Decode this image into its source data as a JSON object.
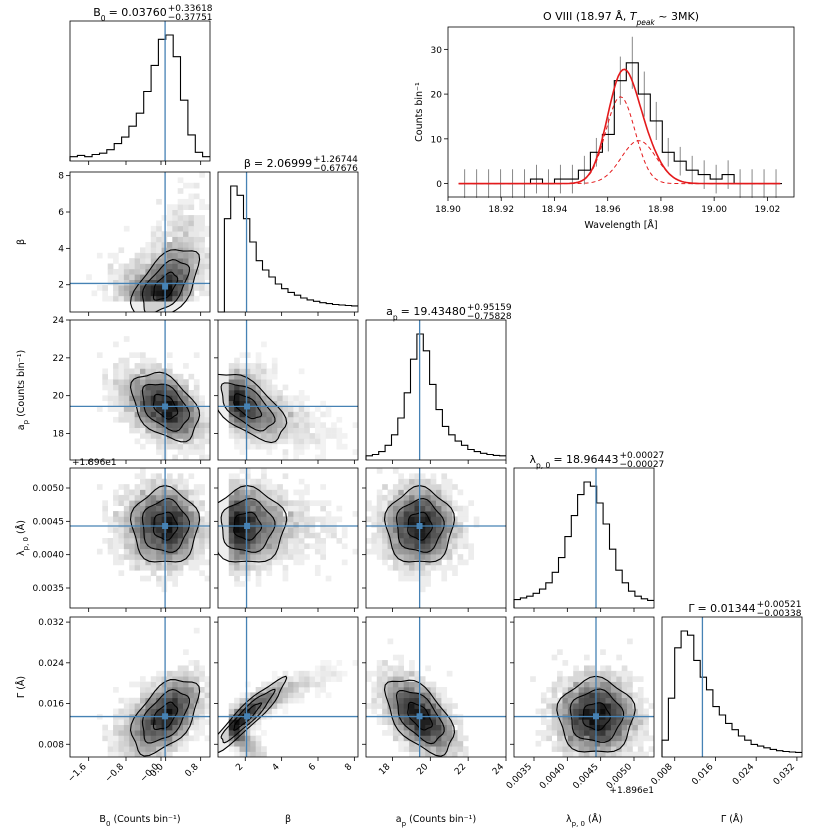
{
  "chart_data": {
    "type": "corner",
    "truth_color": "#4682b4",
    "params": [
      {
        "key": "B0",
        "title_main": "B",
        "title_sub": "0",
        "title_value": "= 0.03760",
        "err_plus": "+0.33618",
        "err_minus": "−0.37751",
        "xlabel_main": "B",
        "xlabel_sub": "0",
        "xlabel_rest": " (Counts bin⁻¹)",
        "ylabel": "",
        "range": [
          -2.0,
          1.0
        ],
        "ticks": [
          "−1.6",
          "−0.8",
          "−0.0",
          "0.0",
          "0.8"
        ],
        "tick_values": [
          -1.6,
          -0.8,
          -0.05,
          0.05,
          0.8
        ],
        "truth": 0.0376,
        "mean": 0.0376,
        "sigma": 0.34,
        "skew": -1.5,
        "hist": [
          1,
          1.3,
          1,
          1.5,
          1.8,
          2.6,
          4,
          5.5,
          8,
          11,
          16,
          22,
          28,
          29,
          24,
          14,
          6,
          2,
          1
        ]
      },
      {
        "key": "beta",
        "title_main": "β",
        "title_value": "= 2.06999",
        "err_plus": "+1.26744",
        "err_minus": "−0.67676",
        "xlabel_main": "β",
        "ylabel": "β",
        "range": [
          0.5,
          8.2
        ],
        "ticks": [
          "2",
          "4",
          "6",
          "8"
        ],
        "tick_values": [
          2,
          4,
          6,
          8
        ],
        "truth": 2.07,
        "mean": 2.3,
        "sigma": 1.0,
        "skew": 0,
        "hist": [
          0,
          20,
          27,
          25,
          20,
          15,
          11,
          9,
          7.5,
          6,
          5,
          4.2,
          3.6,
          3,
          2.6,
          2.3,
          2,
          1.8,
          1.6,
          1.5,
          1.4,
          1.3
        ]
      },
      {
        "key": "ap",
        "title_main": "a",
        "title_sub": "p",
        "title_value": "= 19.43480",
        "err_plus": "+0.95159",
        "err_minus": "−0.75828",
        "xlabel_main": "a",
        "xlabel_sub": "p",
        "xlabel_rest": " (Counts bin⁻¹)",
        "ylabel_main": "a",
        "ylabel_sub": "p",
        "ylabel_rest": " (Counts bin⁻¹)",
        "range": [
          16.6,
          24.0
        ],
        "ticks": [
          "18",
          "20",
          "22",
          "24"
        ],
        "tick_values": [
          18,
          20,
          22,
          24
        ],
        "truth": 19.4348,
        "mean": 19.43,
        "sigma": 0.85,
        "skew": 0,
        "hist": [
          1,
          1.3,
          2,
          3.5,
          6,
          10,
          16,
          24,
          30,
          26,
          18,
          12,
          8,
          6,
          4.5,
          3.5,
          2.5,
          2,
          1.6,
          1.3,
          1.1,
          1
        ]
      },
      {
        "key": "lambda",
        "title_main": "λ",
        "title_sub": "p, 0",
        "title_value": "= 18.96443",
        "err_plus": "+0.00027",
        "err_minus": "−0.00027",
        "xlabel_main": "λ",
        "xlabel_sub": "p, 0",
        "xlabel_rest": " (Å)",
        "ylabel_main": "λ",
        "ylabel_sub": "p, 0",
        "ylabel_rest": " (Å)",
        "offset_label": "+1.896e1",
        "range": [
          0.0032,
          0.0053
        ],
        "ticks": [
          "0.0035",
          "0.0040",
          "0.0045",
          "0.0050"
        ],
        "tick_values": [
          0.0035,
          0.004,
          0.0045,
          0.005
        ],
        "truth": 0.00443,
        "mean": 0.00443,
        "sigma": 0.00027,
        "skew": 0,
        "hist": [
          2,
          2.4,
          2.8,
          3.5,
          4.5,
          6,
          8.5,
          12,
          17,
          22,
          27,
          30,
          29,
          25,
          20,
          14,
          9,
          6,
          4,
          2.8,
          2.2,
          1.8
        ]
      },
      {
        "key": "gamma",
        "title_main": "Γ",
        "title_value": "= 0.01344",
        "err_plus": "+0.00521",
        "err_minus": "−0.00338",
        "xlabel_main": "Γ",
        "xlabel_rest": "  (Å)",
        "ylabel_main": "Γ",
        "ylabel_rest": "  (Å)",
        "range": [
          0.0055,
          0.033
        ],
        "ticks": [
          "0.008",
          "0.016",
          "0.024",
          "0.032"
        ],
        "tick_values": [
          0.008,
          0.016,
          0.024,
          0.032
        ],
        "truth": 0.01344,
        "mean": 0.0135,
        "sigma": 0.0035,
        "skew": 0,
        "hist": [
          4,
          14,
          26,
          30,
          29,
          23,
          19,
          16,
          12,
          10,
          8,
          6.5,
          5,
          4,
          3,
          2.6,
          2.2,
          1.8,
          1.5,
          1.3,
          1.2,
          1.1
        ]
      }
    ],
    "correlations": {
      "1-0": 0.55,
      "2-0": -0.4,
      "2-1": -0.6,
      "3-0": 0.0,
      "3-1": 0.0,
      "3-2": 0.0,
      "4-0": 0.5,
      "4-1": 0.93,
      "4-2": -0.55,
      "4-3": 0.0
    },
    "spectrum": {
      "title": "O VIII (18.97 Å, ",
      "title_t": "T",
      "title_peak": "peak",
      "title_end": " ~ 3MK)",
      "xlabel": "Wavelength [Å]",
      "ylabel": "Counts bin⁻¹",
      "xlim": [
        18.9,
        19.03
      ],
      "ylim": [
        -3,
        35
      ],
      "xticks": [
        "18.90",
        "18.92",
        "18.94",
        "18.96",
        "18.98",
        "19.00",
        "19.02"
      ],
      "xtick_values": [
        18.9,
        18.92,
        18.94,
        18.96,
        18.98,
        19.0,
        19.02
      ],
      "yticks": [
        "0",
        "10",
        "20",
        "30"
      ],
      "ytick_values": [
        0,
        10,
        20,
        30
      ],
      "bin_edges": [
        18.904,
        18.9085,
        18.913,
        18.9175,
        18.922,
        18.9265,
        18.931,
        18.9355,
        18.94,
        18.9445,
        18.949,
        18.9535,
        18.958,
        18.9625,
        18.967,
        18.9715,
        18.976,
        18.9805,
        18.985,
        18.9895,
        18.994,
        18.9985,
        19.003,
        19.0075,
        19.012,
        19.0165,
        19.021,
        19.0255
      ],
      "counts": [
        0,
        0,
        0,
        0,
        0,
        0,
        1,
        0,
        1,
        1,
        3,
        7,
        11,
        23,
        27,
        20,
        14,
        7,
        5,
        3,
        2,
        1,
        2,
        0,
        0,
        0,
        0
      ],
      "total_peaks": [
        {
          "center": 18.9648,
          "amp": 19.4,
          "gamma": 0.0125
        },
        {
          "center": 18.9717,
          "amp": 9.6,
          "gamma": 0.015
        }
      ],
      "colors": {
        "data": "#000000",
        "errors": "#888888",
        "fit": "#e41a1c",
        "components": "#e41a1c"
      }
    }
  }
}
